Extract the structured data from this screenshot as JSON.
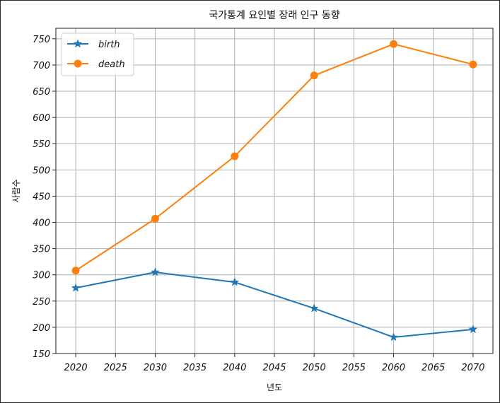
{
  "chart_data": {
    "type": "line",
    "title": "국가통계 요인별 장래 인구 동향",
    "xlabel": "년도",
    "ylabel": "사람수",
    "x": [
      2020,
      2030,
      2040,
      2050,
      2060,
      2070
    ],
    "xlim": [
      2017.5,
      2072.5
    ],
    "ylim": [
      150,
      770
    ],
    "x_ticks": [
      "2020",
      "2025",
      "2030",
      "2035",
      "2040",
      "2045",
      "2050",
      "2055",
      "2060",
      "2065",
      "2070"
    ],
    "y_ticks": [
      "150",
      "200",
      "250",
      "300",
      "350",
      "400",
      "450",
      "500",
      "550",
      "600",
      "650",
      "700",
      "750"
    ],
    "grid": true,
    "legend_position": "top-left",
    "series": [
      {
        "name": "birth",
        "marker": "star",
        "color": "#1f77b4",
        "values": [
          275,
          305,
          286,
          236,
          181,
          196
        ]
      },
      {
        "name": "death",
        "marker": "circle",
        "color": "#ff7f0e",
        "values": [
          308,
          407,
          526,
          680,
          740,
          701
        ]
      }
    ]
  }
}
